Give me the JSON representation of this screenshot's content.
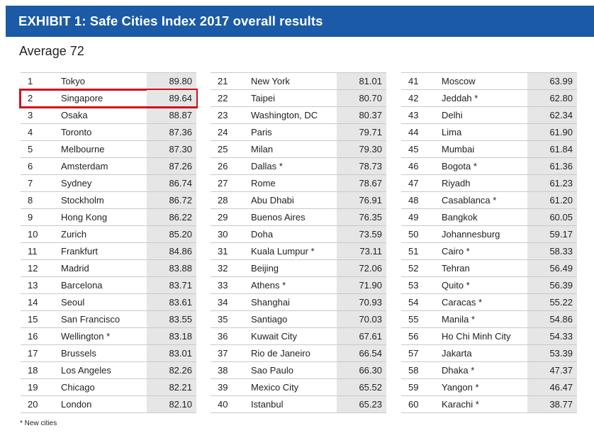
{
  "title": "EXHIBIT 1: Safe Cities Index 2017 overall results",
  "average_label": "Average 72",
  "footnote": "* New cities",
  "colors": {
    "banner": "#1b5aa6",
    "highlight": "#d0121b",
    "score_bg": "#e6e6e6"
  },
  "highlighted_rank": "2",
  "columns": [
    [
      {
        "rank": "1",
        "city": "Tokyo",
        "score": "89.80"
      },
      {
        "rank": "2",
        "city": "Singapore",
        "score": "89.64"
      },
      {
        "rank": "3",
        "city": "Osaka",
        "score": "88.87"
      },
      {
        "rank": "4",
        "city": "Toronto",
        "score": "87.36"
      },
      {
        "rank": "5",
        "city": "Melbourne",
        "score": "87.30"
      },
      {
        "rank": "6",
        "city": "Amsterdam",
        "score": "87.26"
      },
      {
        "rank": "7",
        "city": "Sydney",
        "score": "86.74"
      },
      {
        "rank": "8",
        "city": "Stockholm",
        "score": "86.72"
      },
      {
        "rank": "9",
        "city": "Hong Kong",
        "score": "86.22"
      },
      {
        "rank": "10",
        "city": "Zurich",
        "score": "85.20"
      },
      {
        "rank": "11",
        "city": "Frankfurt",
        "score": "84.86"
      },
      {
        "rank": "12",
        "city": "Madrid",
        "score": "83.88"
      },
      {
        "rank": "13",
        "city": "Barcelona",
        "score": "83.71"
      },
      {
        "rank": "14",
        "city": "Seoul",
        "score": "83.61"
      },
      {
        "rank": "15",
        "city": "San Francisco",
        "score": "83.55"
      },
      {
        "rank": "16",
        "city": "Wellington *",
        "score": "83.18"
      },
      {
        "rank": "17",
        "city": "Brussels",
        "score": "83.01"
      },
      {
        "rank": "18",
        "city": "Los Angeles",
        "score": "82.26"
      },
      {
        "rank": "19",
        "city": "Chicago",
        "score": "82.21"
      },
      {
        "rank": "20",
        "city": "London",
        "score": "82.10"
      }
    ],
    [
      {
        "rank": "21",
        "city": "New York",
        "score": "81.01"
      },
      {
        "rank": "22",
        "city": "Taipei",
        "score": "80.70"
      },
      {
        "rank": "23",
        "city": "Washington, DC",
        "score": "80.37"
      },
      {
        "rank": "24",
        "city": "Paris",
        "score": "79.71"
      },
      {
        "rank": "25",
        "city": "Milan",
        "score": "79.30"
      },
      {
        "rank": "26",
        "city": "Dallas *",
        "score": "78.73"
      },
      {
        "rank": "27",
        "city": "Rome",
        "score": "78.67"
      },
      {
        "rank": "28",
        "city": "Abu Dhabi",
        "score": "76.91"
      },
      {
        "rank": "29",
        "city": "Buenos Aires",
        "score": "76.35"
      },
      {
        "rank": "30",
        "city": "Doha",
        "score": "73.59"
      },
      {
        "rank": "31",
        "city": "Kuala Lumpur *",
        "score": "73.11"
      },
      {
        "rank": "32",
        "city": "Beijing",
        "score": "72.06"
      },
      {
        "rank": "33",
        "city": "Athens *",
        "score": "71.90"
      },
      {
        "rank": "34",
        "city": "Shanghai",
        "score": "70.93"
      },
      {
        "rank": "35",
        "city": "Santiago",
        "score": "70.03"
      },
      {
        "rank": "36",
        "city": "Kuwait City",
        "score": "67.61"
      },
      {
        "rank": "37",
        "city": "Rio de Janeiro",
        "score": "66.54"
      },
      {
        "rank": "38",
        "city": "Sao Paulo",
        "score": "66.30"
      },
      {
        "rank": "39",
        "city": "Mexico City",
        "score": "65.52"
      },
      {
        "rank": "40",
        "city": "Istanbul",
        "score": "65.23"
      }
    ],
    [
      {
        "rank": "41",
        "city": "Moscow",
        "score": "63.99"
      },
      {
        "rank": "42",
        "city": "Jeddah *",
        "score": "62.80"
      },
      {
        "rank": "43",
        "city": "Delhi",
        "score": "62.34"
      },
      {
        "rank": "44",
        "city": "Lima",
        "score": "61.90"
      },
      {
        "rank": "45",
        "city": "Mumbai",
        "score": "61.84"
      },
      {
        "rank": "46",
        "city": "Bogota *",
        "score": "61.36"
      },
      {
        "rank": "47",
        "city": "Riyadh",
        "score": "61.23"
      },
      {
        "rank": "48",
        "city": "Casablanca *",
        "score": "61.20"
      },
      {
        "rank": "49",
        "city": "Bangkok",
        "score": "60.05"
      },
      {
        "rank": "50",
        "city": "Johannesburg",
        "score": "59.17"
      },
      {
        "rank": "51",
        "city": "Cairo *",
        "score": "58.33"
      },
      {
        "rank": "52",
        "city": "Tehran",
        "score": "56.49"
      },
      {
        "rank": "53",
        "city": "Quito *",
        "score": "56.39"
      },
      {
        "rank": "54",
        "city": "Caracas *",
        "score": "55.22"
      },
      {
        "rank": "55",
        "city": "Manila *",
        "score": "54.86"
      },
      {
        "rank": "56",
        "city": "Ho Chi Minh City",
        "score": "54.33"
      },
      {
        "rank": "57",
        "city": "Jakarta",
        "score": "53.39"
      },
      {
        "rank": "58",
        "city": "Dhaka *",
        "score": "47.37"
      },
      {
        "rank": "59",
        "city": "Yangon *",
        "score": "46.47"
      },
      {
        "rank": "60",
        "city": "Karachi *",
        "score": "38.77"
      }
    ]
  ]
}
